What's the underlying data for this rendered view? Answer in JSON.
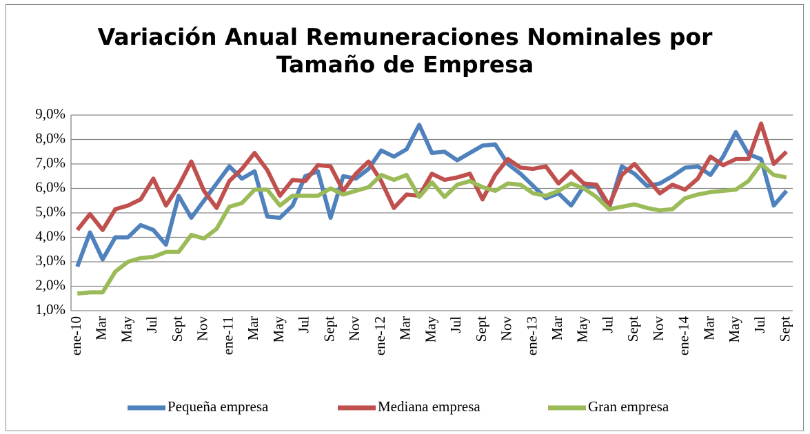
{
  "chart_data": {
    "type": "line",
    "title": "Variación Anual Remuneraciones Nominales por Tamaño de Empresa",
    "categories": [
      "ene-10",
      null,
      "Mar",
      null,
      "May",
      null,
      "Jul",
      null,
      "Sept",
      null,
      "Nov",
      null,
      "ene-11",
      null,
      "Mar",
      null,
      "May",
      null,
      "Jul",
      null,
      "Sept",
      null,
      "Nov",
      null,
      "ene-12",
      null,
      "Mar",
      null,
      "May",
      null,
      "Jul",
      null,
      "Sept",
      null,
      "Nov",
      null,
      "ene-13",
      null,
      "Mar",
      null,
      "May",
      null,
      "Jul",
      null,
      "Sept",
      null,
      "Nov",
      null,
      "ene-14",
      null,
      "Mar",
      null,
      "May",
      null,
      "Jul",
      null,
      "Sept"
    ],
    "series": [
      {
        "name": "Pequeña empresa",
        "color": "#4f81bd",
        "values": [
          2.8,
          4.2,
          3.1,
          4.0,
          4.0,
          4.5,
          4.3,
          3.7,
          5.7,
          4.8,
          5.5,
          6.2,
          6.9,
          6.4,
          6.7,
          4.85,
          4.8,
          5.3,
          6.5,
          6.7,
          4.8,
          6.5,
          6.4,
          6.8,
          7.55,
          7.3,
          7.6,
          8.6,
          7.45,
          7.5,
          7.15,
          7.45,
          7.75,
          7.8,
          7.0,
          6.6,
          6.1,
          5.6,
          5.8,
          5.3,
          6.1,
          6.1,
          5.2,
          6.9,
          6.6,
          6.1,
          6.2,
          6.5,
          6.85,
          6.9,
          6.55,
          7.3,
          8.3,
          7.4,
          7.2,
          5.3,
          5.9
        ]
      },
      {
        "name": "Mediana empresa",
        "color": "#c0504d",
        "values": [
          4.3,
          4.95,
          4.3,
          5.15,
          5.3,
          5.55,
          6.4,
          5.3,
          6.1,
          7.1,
          5.9,
          5.2,
          6.3,
          6.8,
          7.45,
          6.75,
          5.7,
          6.35,
          6.3,
          6.95,
          6.9,
          5.9,
          6.6,
          7.1,
          6.3,
          5.2,
          5.75,
          5.7,
          6.6,
          6.35,
          6.45,
          6.6,
          5.55,
          6.55,
          7.2,
          6.85,
          6.8,
          6.9,
          6.2,
          6.7,
          6.2,
          6.15,
          5.3,
          6.55,
          7.0,
          6.4,
          5.8,
          6.15,
          5.95,
          6.4,
          7.3,
          6.95,
          7.2,
          7.2,
          8.65,
          7.0,
          7.5
        ]
      },
      {
        "name": "Gran empresa",
        "color": "#9bbb59",
        "values": [
          1.7,
          1.75,
          1.75,
          2.6,
          3.0,
          3.15,
          3.2,
          3.4,
          3.4,
          4.1,
          3.95,
          4.35,
          5.25,
          5.4,
          5.95,
          5.95,
          5.3,
          5.7,
          5.7,
          5.7,
          6.0,
          5.75,
          5.9,
          6.05,
          6.55,
          6.35,
          6.55,
          5.65,
          6.25,
          5.65,
          6.15,
          6.3,
          6.05,
          5.9,
          6.2,
          6.15,
          5.8,
          5.7,
          5.9,
          6.2,
          6.0,
          5.65,
          5.15,
          5.25,
          5.35,
          5.2,
          5.1,
          5.15,
          5.6,
          5.75,
          5.85,
          5.9,
          5.95,
          6.3,
          7.0,
          6.55,
          6.45
        ]
      }
    ],
    "ylim": [
      1,
      9
    ],
    "yticks": [
      {
        "value": 1,
        "label": "1,0%"
      },
      {
        "value": 2,
        "label": "2,0%"
      },
      {
        "value": 3,
        "label": "3,0%"
      },
      {
        "value": 4,
        "label": "4,0%"
      },
      {
        "value": 5,
        "label": "5,0%"
      },
      {
        "value": 6,
        "label": "6,0%"
      },
      {
        "value": 7,
        "label": "7,0%"
      },
      {
        "value": 8,
        "label": "8,0%"
      },
      {
        "value": 9,
        "label": "9,0%"
      }
    ],
    "grid": true,
    "legend": "bottom"
  }
}
